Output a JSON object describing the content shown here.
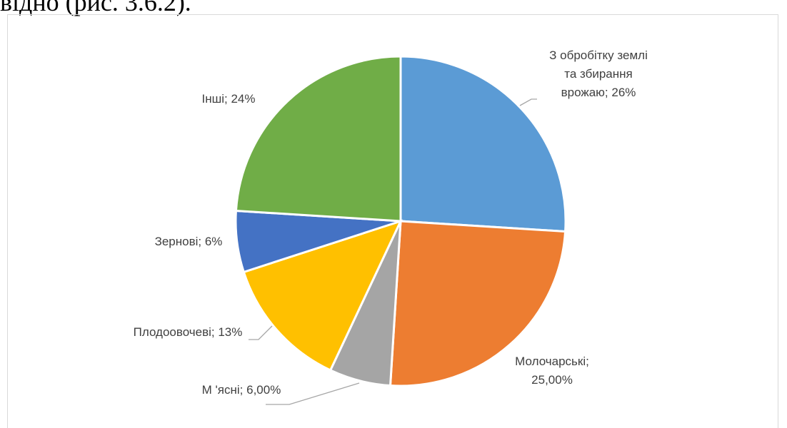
{
  "page_text": "відно (рис. 3.6.2).",
  "chart_data": {
    "type": "pie",
    "title": "",
    "slices": [
      {
        "label_lines": [
          "З обробітку землі",
          "та збирання",
          "врожаю; 26%"
        ],
        "value": 26,
        "color": "#5b9bd5"
      },
      {
        "label_lines": [
          "Молочарські;",
          "25,00%"
        ],
        "value": 25,
        "color": "#ed7d31"
      },
      {
        "label_lines": [
          "М 'ясні; 6,00%"
        ],
        "value": 6,
        "color": "#a5a5a5"
      },
      {
        "label_lines": [
          "Плодоовочеві; 13%"
        ],
        "value": 13,
        "color": "#ffc000"
      },
      {
        "label_lines": [
          "Зернові; 6%"
        ],
        "value": 6,
        "color": "#4472c4"
      },
      {
        "label_lines": [
          "Інші; 24%"
        ],
        "value": 24,
        "color": "#70ad47"
      }
    ]
  }
}
